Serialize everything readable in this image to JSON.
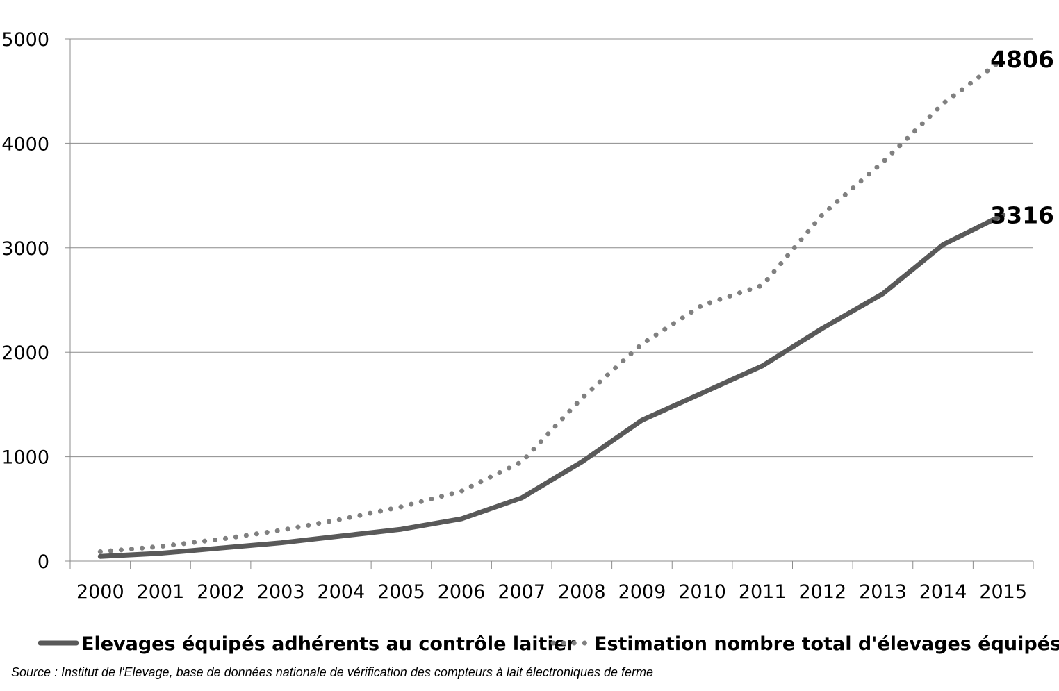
{
  "chart_data": {
    "type": "line",
    "x": [
      "2000",
      "2001",
      "2002",
      "2003",
      "2004",
      "2005",
      "2006",
      "2007",
      "2008",
      "2009",
      "2010",
      "2011",
      "2012",
      "2013",
      "2014",
      "2015"
    ],
    "series": [
      {
        "name": "Elevages équipés adhérents au contrôle laitier",
        "style": "solid",
        "color": "#595959",
        "values": [
          45,
          75,
          125,
          175,
          240,
          305,
          405,
          605,
          950,
          1350,
          1610,
          1870,
          2230,
          2560,
          3030,
          3316
        ],
        "end_label": "3316"
      },
      {
        "name": "Estimation nombre total d'élevages équipés",
        "style": "dotted",
        "color": "#808080",
        "values": [
          90,
          140,
          210,
          295,
          400,
          520,
          670,
          950,
          1560,
          2080,
          2450,
          2640,
          3320,
          3820,
          4380,
          4806
        ],
        "end_label": "4806"
      }
    ],
    "y_ticks": [
      "0",
      "1000",
      "2000",
      "3000",
      "4000",
      "5000"
    ],
    "ylim": [
      0,
      5000
    ],
    "grid": "horizontal",
    "legend_position": "bottom"
  },
  "source_note": "Source : Institut de l'Elevage, base de données nationale de vérification des compteurs à lait électroniques de ferme"
}
